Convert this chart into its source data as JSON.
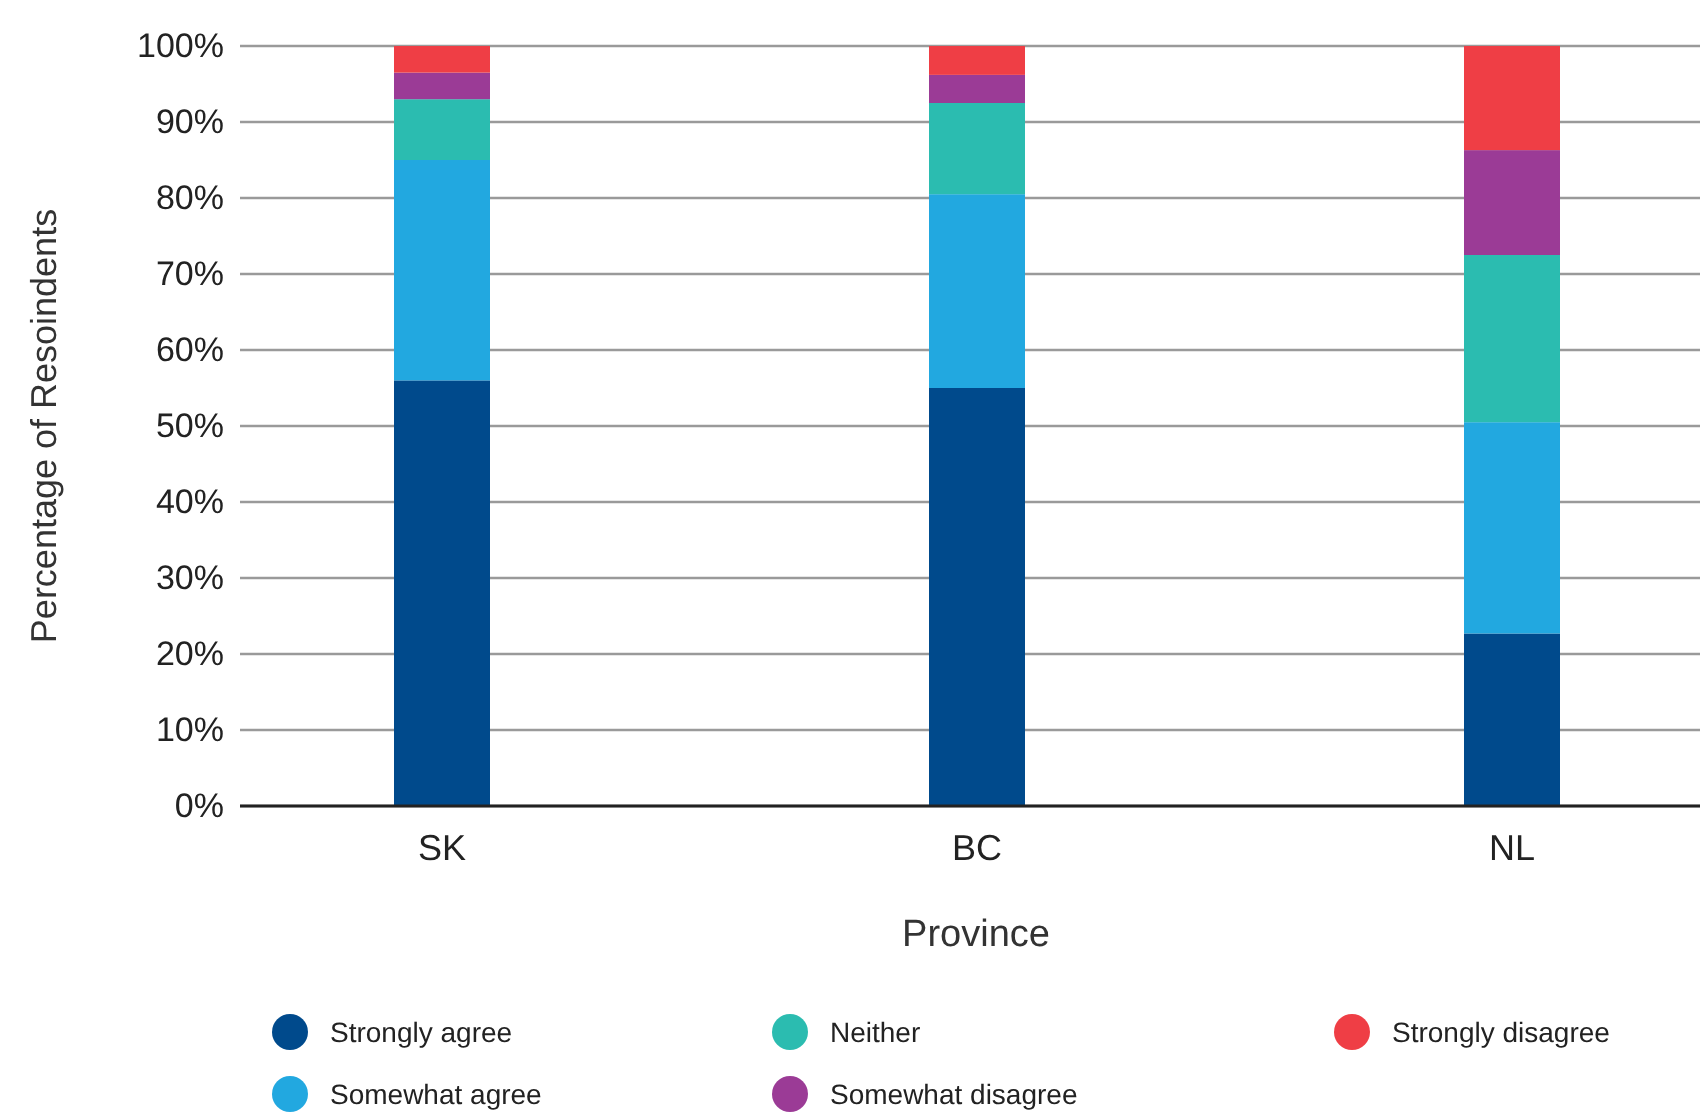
{
  "chart_data": {
    "type": "bar",
    "stacked": true,
    "xlabel": "Province",
    "ylabel": "Percentage of Resoindents",
    "categories": [
      "SK",
      "BC",
      "NL"
    ],
    "series": [
      {
        "name": "Strongly agree",
        "color": "#004a8c",
        "values": [
          56,
          55,
          22.7
        ]
      },
      {
        "name": "Somewhat agree",
        "color": "#22a8e0",
        "values": [
          29,
          25.5,
          27.8
        ]
      },
      {
        "name": "Neither",
        "color": "#2bbcb0",
        "values": [
          8,
          12,
          22
        ]
      },
      {
        "name": "Somewhat disagree",
        "color": "#9b3b96",
        "values": [
          3.5,
          3.7,
          13.8
        ]
      },
      {
        "name": "Strongly disagree",
        "color": "#ef3e45",
        "values": [
          3.5,
          3.8,
          13.7
        ]
      }
    ],
    "ylim": [
      0,
      100
    ],
    "yticks": [
      {
        "value": 0,
        "label": "0%"
      },
      {
        "value": 10,
        "label": "10%"
      },
      {
        "value": 20,
        "label": "20%"
      },
      {
        "value": 30,
        "label": "30%"
      },
      {
        "value": 40,
        "label": "40%"
      },
      {
        "value": 50,
        "label": "50%"
      },
      {
        "value": 60,
        "label": "60%"
      },
      {
        "value": 70,
        "label": "70%"
      },
      {
        "value": 80,
        "label": "80%"
      },
      {
        "value": 90,
        "label": "90%"
      },
      {
        "value": 100,
        "label": "100%"
      }
    ],
    "grid": "y",
    "legend": "bottom"
  }
}
